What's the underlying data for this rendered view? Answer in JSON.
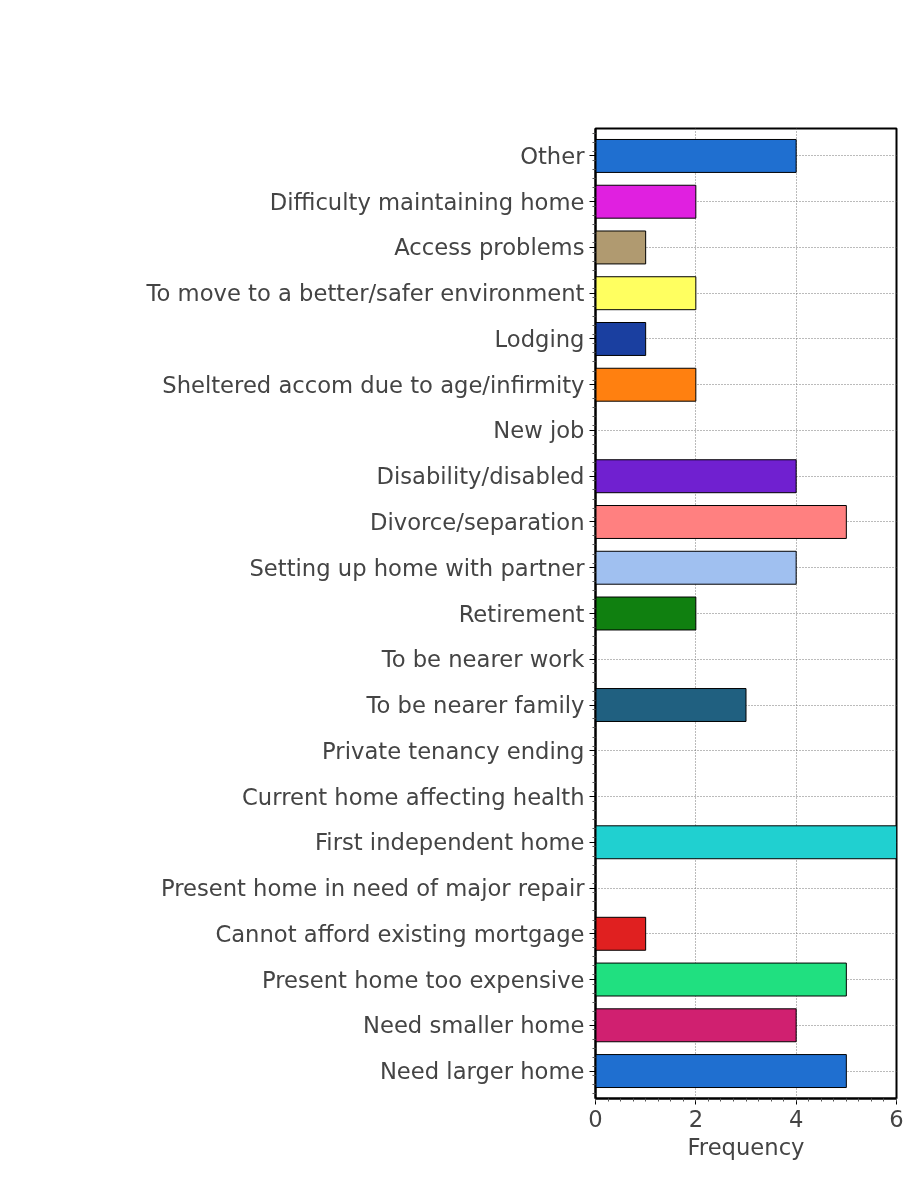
{
  "chart_data": {
    "type": "bar",
    "orientation": "horizontal",
    "xlabel": "Frequency",
    "categories": [
      "Other",
      "Difficulty maintaining home",
      "Access problems",
      "To move to a better/safer environment",
      "Lodging",
      "Sheltered accom due to age/infirmity",
      "New job",
      "Disability/disabled",
      "Divorce/separation",
      "Setting up home with partner",
      "Retirement",
      "To be nearer work",
      "To be nearer family",
      "Private tenancy ending",
      "Current home affecting health",
      "First independent home",
      "Present home in need of major repair",
      "Cannot afford existing mortgage",
      "Present home too expensive",
      "Need smaller home",
      "Need larger home"
    ],
    "values": [
      4,
      2,
      1,
      2,
      1,
      2,
      0,
      4,
      5,
      4,
      2,
      0,
      3,
      0,
      0,
      6,
      0,
      1,
      5,
      4,
      5
    ],
    "colors": [
      "#1f6fd0",
      "#e020e0",
      "#b09a70",
      "#ffff60",
      "#1a3fa0",
      "#ff8010",
      null,
      "#7020d0",
      "#ff8080",
      "#a0c0f0",
      "#108010",
      null,
      "#206080",
      null,
      null,
      "#20d0d0",
      null,
      "#e02020",
      "#20e080",
      "#d02070",
      "#1f6fd0"
    ],
    "xlim": [
      0,
      6
    ],
    "xticks": [
      0,
      2,
      4,
      6
    ],
    "grid": true
  }
}
